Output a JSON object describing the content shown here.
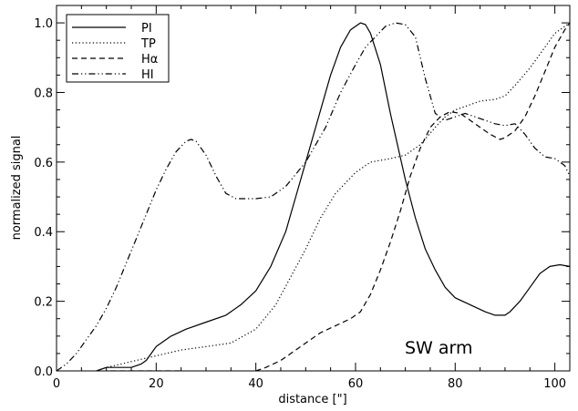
{
  "chart_data": {
    "type": "line",
    "xlabel": "distance [\"]",
    "ylabel": "normalized signal",
    "xlim": [
      0,
      103
    ],
    "ylim": [
      0,
      1.05
    ],
    "x_ticks": [
      0,
      20,
      40,
      60,
      80,
      100
    ],
    "x_tick_labels": [
      "0",
      "20",
      "40",
      "60",
      "80",
      "100"
    ],
    "y_ticks": [
      0,
      0.2,
      0.4,
      0.6,
      0.8,
      1.0
    ],
    "y_tick_labels": [
      "0.0",
      "0.2",
      "0.4",
      "0.6",
      "0.8",
      "1.0"
    ],
    "grid": false,
    "legend_position": "top-left",
    "annotation": "SW arm",
    "series": [
      {
        "name": "PI",
        "dash": "solid",
        "x": [
          0,
          3,
          5,
          8,
          10,
          12,
          15,
          17,
          18,
          20,
          23,
          26,
          30,
          34,
          37,
          40,
          43,
          46,
          48,
          50,
          53,
          55,
          57,
          59,
          61,
          62,
          63,
          65,
          67,
          70,
          72,
          74,
          76,
          78,
          80,
          83,
          86,
          88,
          90,
          91,
          93,
          95,
          97,
          99,
          101,
          103
        ],
        "y": [
          0.0,
          -0.01,
          -0.01,
          0.0,
          0.01,
          0.01,
          0.01,
          0.02,
          0.03,
          0.07,
          0.1,
          0.12,
          0.14,
          0.16,
          0.19,
          0.23,
          0.3,
          0.4,
          0.5,
          0.6,
          0.75,
          0.85,
          0.93,
          0.98,
          1.0,
          0.995,
          0.97,
          0.88,
          0.74,
          0.55,
          0.44,
          0.35,
          0.29,
          0.24,
          0.21,
          0.19,
          0.17,
          0.16,
          0.16,
          0.17,
          0.2,
          0.24,
          0.28,
          0.3,
          0.305,
          0.3
        ]
      },
      {
        "name": "TP",
        "dash": "dotted",
        "x": [
          0,
          3,
          5,
          8,
          10,
          13,
          16,
          19,
          22,
          25,
          30,
          35,
          40,
          44,
          47,
          50,
          53,
          56,
          60,
          63,
          67,
          70,
          73,
          76,
          78,
          80,
          82,
          85,
          88,
          90,
          92,
          95,
          98,
          100,
          102,
          103
        ],
        "y": [
          0.0,
          -0.01,
          -0.01,
          0.0,
          0.01,
          0.02,
          0.03,
          0.04,
          0.05,
          0.06,
          0.07,
          0.08,
          0.12,
          0.19,
          0.27,
          0.35,
          0.44,
          0.51,
          0.57,
          0.6,
          0.61,
          0.62,
          0.65,
          0.7,
          0.73,
          0.75,
          0.76,
          0.775,
          0.78,
          0.79,
          0.82,
          0.87,
          0.93,
          0.97,
          0.99,
          1.0
        ]
      },
      {
        "name": "Hα",
        "dash": "dashed",
        "x": [
          0,
          3,
          5,
          8,
          10,
          15,
          20,
          25,
          30,
          35,
          38,
          40,
          42,
          45,
          48,
          50,
          53,
          56,
          59,
          61,
          63,
          65,
          67,
          69,
          71,
          73,
          75,
          77,
          79,
          81,
          83,
          85,
          87,
          89,
          90,
          92,
          94,
          96,
          98,
          100,
          102,
          103
        ],
        "y": [
          0.0,
          -0.01,
          -0.01,
          -0.005,
          0.0,
          0.0,
          0.0,
          0.0,
          -0.005,
          -0.01,
          -0.01,
          0.0,
          0.01,
          0.03,
          0.06,
          0.08,
          0.11,
          0.13,
          0.15,
          0.17,
          0.22,
          0.29,
          0.37,
          0.46,
          0.56,
          0.64,
          0.7,
          0.73,
          0.745,
          0.74,
          0.72,
          0.7,
          0.68,
          0.665,
          0.67,
          0.69,
          0.73,
          0.79,
          0.86,
          0.93,
          0.98,
          1.0
        ]
      },
      {
        "name": "HI",
        "dash": "dash-dot-dot",
        "x": [
          0,
          2,
          4,
          6,
          8,
          10,
          12,
          14,
          16,
          18,
          20,
          22,
          24,
          26,
          27,
          28,
          30,
          32,
          34,
          36,
          38,
          40,
          43,
          46,
          50,
          54,
          57,
          60,
          62,
          64,
          66,
          68,
          70,
          72,
          74,
          76,
          78,
          80,
          82,
          84,
          86,
          88,
          90,
          92,
          94,
          96,
          98,
          100,
          101,
          102,
          103
        ],
        "y": [
          0.0,
          0.02,
          0.05,
          0.09,
          0.13,
          0.18,
          0.24,
          0.31,
          0.38,
          0.45,
          0.52,
          0.58,
          0.63,
          0.66,
          0.665,
          0.66,
          0.62,
          0.56,
          0.51,
          0.495,
          0.495,
          0.495,
          0.5,
          0.53,
          0.6,
          0.7,
          0.8,
          0.88,
          0.93,
          0.96,
          0.99,
          1.0,
          0.995,
          0.96,
          0.84,
          0.74,
          0.72,
          0.73,
          0.74,
          0.73,
          0.72,
          0.71,
          0.705,
          0.71,
          0.68,
          0.64,
          0.615,
          0.61,
          0.6,
          0.59,
          0.56
        ]
      }
    ]
  }
}
